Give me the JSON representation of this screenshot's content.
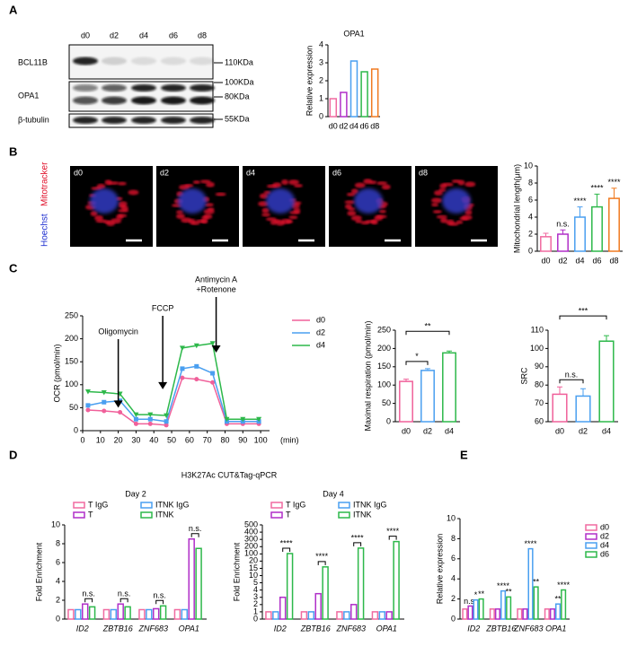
{
  "panel_labels": [
    "A",
    "B",
    "C",
    "D",
    "E"
  ],
  "blot": {
    "lanes": [
      "d0",
      "d2",
      "d4",
      "d6",
      "d8"
    ],
    "rows": [
      "BCL11B",
      "OPA1",
      "β-tubulin"
    ],
    "markers": [
      "110KDa",
      "100KDa",
      "80KDa",
      "55KDa"
    ]
  },
  "images": {
    "labels": [
      "d0",
      "d2",
      "d4",
      "d6",
      "d8"
    ],
    "stains": [
      "Mitotracker",
      "Hoechst"
    ]
  },
  "figure_title": "H3K27Ac CUT&Tag-qPCR",
  "chart_data": [
    {
      "type": "bar",
      "title": "OPA1",
      "ylabel": "Relative expression",
      "categories": [
        "d0",
        "d2",
        "d4",
        "d6",
        "d8"
      ],
      "values": [
        1.0,
        1.35,
        3.1,
        2.5,
        2.65
      ],
      "colors": [
        "#f06aa0",
        "#b02fc8",
        "#4a9ff0",
        "#2db84a",
        "#f07a20"
      ],
      "ylim": [
        0,
        4
      ],
      "yticks": [
        0,
        1,
        2,
        3,
        4
      ]
    },
    {
      "type": "bar",
      "ylabel": "Mitochondrial length(μm)",
      "categories": [
        "d0",
        "d2",
        "d4",
        "d6",
        "d8"
      ],
      "values": [
        1.7,
        2.0,
        4.0,
        5.2,
        6.2
      ],
      "errors": [
        0.4,
        0.5,
        1.2,
        1.5,
        1.2
      ],
      "annotations": [
        null,
        "n.s.",
        "****",
        "****",
        "****"
      ],
      "colors": [
        "#f06aa0",
        "#b02fc8",
        "#4a9ff0",
        "#2db84a",
        "#f07a20"
      ],
      "ylim": [
        0,
        10
      ],
      "yticks": [
        0,
        2,
        4,
        6,
        8,
        10
      ]
    },
    {
      "type": "line",
      "ylabel": "OCR (pmol/min)",
      "xlabel": "(min)",
      "x": [
        3,
        12,
        21,
        30,
        38,
        47,
        56,
        64,
        73,
        81,
        90,
        99
      ],
      "series": [
        {
          "name": "d0",
          "color": "#f0609a",
          "marker": "circle",
          "values": [
            45,
            43,
            40,
            15,
            15,
            12,
            115,
            112,
            105,
            15,
            15,
            15
          ]
        },
        {
          "name": "d2",
          "color": "#4a9ff0",
          "marker": "square",
          "values": [
            55,
            62,
            65,
            25,
            25,
            20,
            135,
            140,
            125,
            20,
            20,
            20
          ]
        },
        {
          "name": "d4",
          "color": "#2db84a",
          "marker": "triangle",
          "values": [
            85,
            83,
            80,
            35,
            35,
            33,
            180,
            185,
            190,
            25,
            25,
            25
          ]
        }
      ],
      "annotations": [
        {
          "lines": [
            "Oligomycin"
          ],
          "x": 20
        },
        {
          "lines": [
            "FCCP"
          ],
          "x": 45
        },
        {
          "lines": [
            "Antimycin A",
            "+Rotenone"
          ],
          "x": 75
        }
      ],
      "xlim": [
        0,
        105
      ],
      "xticks": [
        0,
        10,
        20,
        30,
        40,
        50,
        60,
        70,
        80,
        90,
        100
      ],
      "ylim": [
        0,
        250
      ],
      "yticks": [
        0,
        50,
        100,
        150,
        200,
        250
      ]
    },
    {
      "type": "bar",
      "ylabel": "Maximal respiration (pmol/min)",
      "categories": [
        "d0",
        "d2",
        "d4"
      ],
      "values": [
        110,
        140,
        188
      ],
      "errors": [
        6,
        5,
        5
      ],
      "colors": [
        "#f0609a",
        "#4a9ff0",
        "#2db84a"
      ],
      "comparisons": [
        {
          "pair": [
            "d0",
            "d2"
          ],
          "label": "*"
        },
        {
          "pair": [
            "d0",
            "d4"
          ],
          "label": "**"
        }
      ],
      "ylim": [
        0,
        250
      ],
      "yticks": [
        0,
        50,
        100,
        150,
        200,
        250
      ]
    },
    {
      "type": "bar",
      "ylabel": "SRC",
      "categories": [
        "d0",
        "d2",
        "d4"
      ],
      "values": [
        75,
        74,
        104
      ],
      "errors": [
        4,
        4,
        3
      ],
      "colors": [
        "#f0609a",
        "#4a9ff0",
        "#2db84a"
      ],
      "comparisons": [
        {
          "pair": [
            "d0",
            "d2"
          ],
          "label": "n.s."
        },
        {
          "pair": [
            "d0",
            "d4"
          ],
          "label": "***"
        }
      ],
      "ylim": [
        60,
        110
      ],
      "yticks": [
        60,
        70,
        80,
        90,
        100,
        110
      ]
    },
    {
      "type": "bar",
      "title": "Day 2",
      "ylabel": "Fold Enrichment",
      "category_style": "italic",
      "legend": "top",
      "categories": [
        "ID2",
        "ZBTB16",
        "ZNF683",
        "OPA1"
      ],
      "series": [
        {
          "name": "T IgG",
          "color": "#f06aa0",
          "values": [
            1,
            1,
            1,
            1
          ]
        },
        {
          "name": "ITNK IgG",
          "color": "#4a9ff0",
          "values": [
            1,
            1,
            1,
            1
          ]
        },
        {
          "name": "T",
          "color": "#b02fc8",
          "values": [
            1.6,
            1.6,
            1.1,
            8.5
          ]
        },
        {
          "name": "ITNK",
          "color": "#2db84a",
          "values": [
            1.3,
            1.3,
            1.4,
            7.5
          ]
        }
      ],
      "annotations": [
        "n.s.",
        "n.s.",
        "n.s.",
        "n.s."
      ],
      "ylim": [
        0,
        10
      ],
      "yticks": [
        0,
        2,
        4,
        6,
        8,
        10
      ]
    },
    {
      "type": "bar",
      "title": "Day 4",
      "ylabel": "Fold Enrichment",
      "category_style": "italic",
      "legend": "top",
      "categories": [
        "ID2",
        "ZBTB16",
        "ZNF683",
        "OPA1"
      ],
      "series": [
        {
          "name": "T IgG",
          "color": "#f06aa0",
          "values": [
            1,
            1,
            1,
            1
          ]
        },
        {
          "name": "ITNK IgG",
          "color": "#4a9ff0",
          "values": [
            1,
            1,
            1,
            1
          ]
        },
        {
          "name": "T",
          "color": "#b02fc8",
          "values": [
            3,
            3.5,
            2,
            1
          ]
        },
        {
          "name": "ITNK",
          "color": "#2db84a",
          "values": [
            105,
            16,
            180,
            270
          ]
        }
      ],
      "annotations": [
        "****",
        "****",
        "****",
        "****"
      ],
      "ylim": [
        0,
        500
      ],
      "axis_breaks": [
        [
          5,
          10
        ],
        [
          20,
          100
        ]
      ],
      "yticks": [
        0,
        1,
        2,
        3,
        4,
        5,
        10,
        15,
        20,
        100,
        200,
        300,
        400,
        500
      ]
    },
    {
      "type": "bar",
      "ylabel": "Relative expression",
      "category_style": "italic",
      "legend": "right",
      "categories": [
        "ID2",
        "ZBTB16",
        "ZNF683",
        "OPA1"
      ],
      "series": [
        {
          "name": "d0",
          "color": "#f06aa0",
          "values": [
            1,
            1,
            1,
            1
          ],
          "annotations": [
            null,
            null,
            null,
            null
          ]
        },
        {
          "name": "d2",
          "color": "#b02fc8",
          "values": [
            1.3,
            1.0,
            1.0,
            1.0
          ],
          "annotations": [
            "n.s.",
            null,
            null,
            null
          ]
        },
        {
          "name": "d4",
          "color": "#4a9ff0",
          "values": [
            1.9,
            2.8,
            7,
            1.5
          ],
          "annotations": [
            "*",
            "****",
            "****",
            "**"
          ]
        },
        {
          "name": "d6",
          "color": "#2db84a",
          "values": [
            2.0,
            2.2,
            3.2,
            2.9
          ],
          "annotations": [
            "**",
            "**",
            "**",
            "****"
          ]
        }
      ],
      "ylim": [
        0,
        10
      ],
      "yticks": [
        0,
        2,
        4,
        6,
        8,
        10
      ]
    }
  ]
}
